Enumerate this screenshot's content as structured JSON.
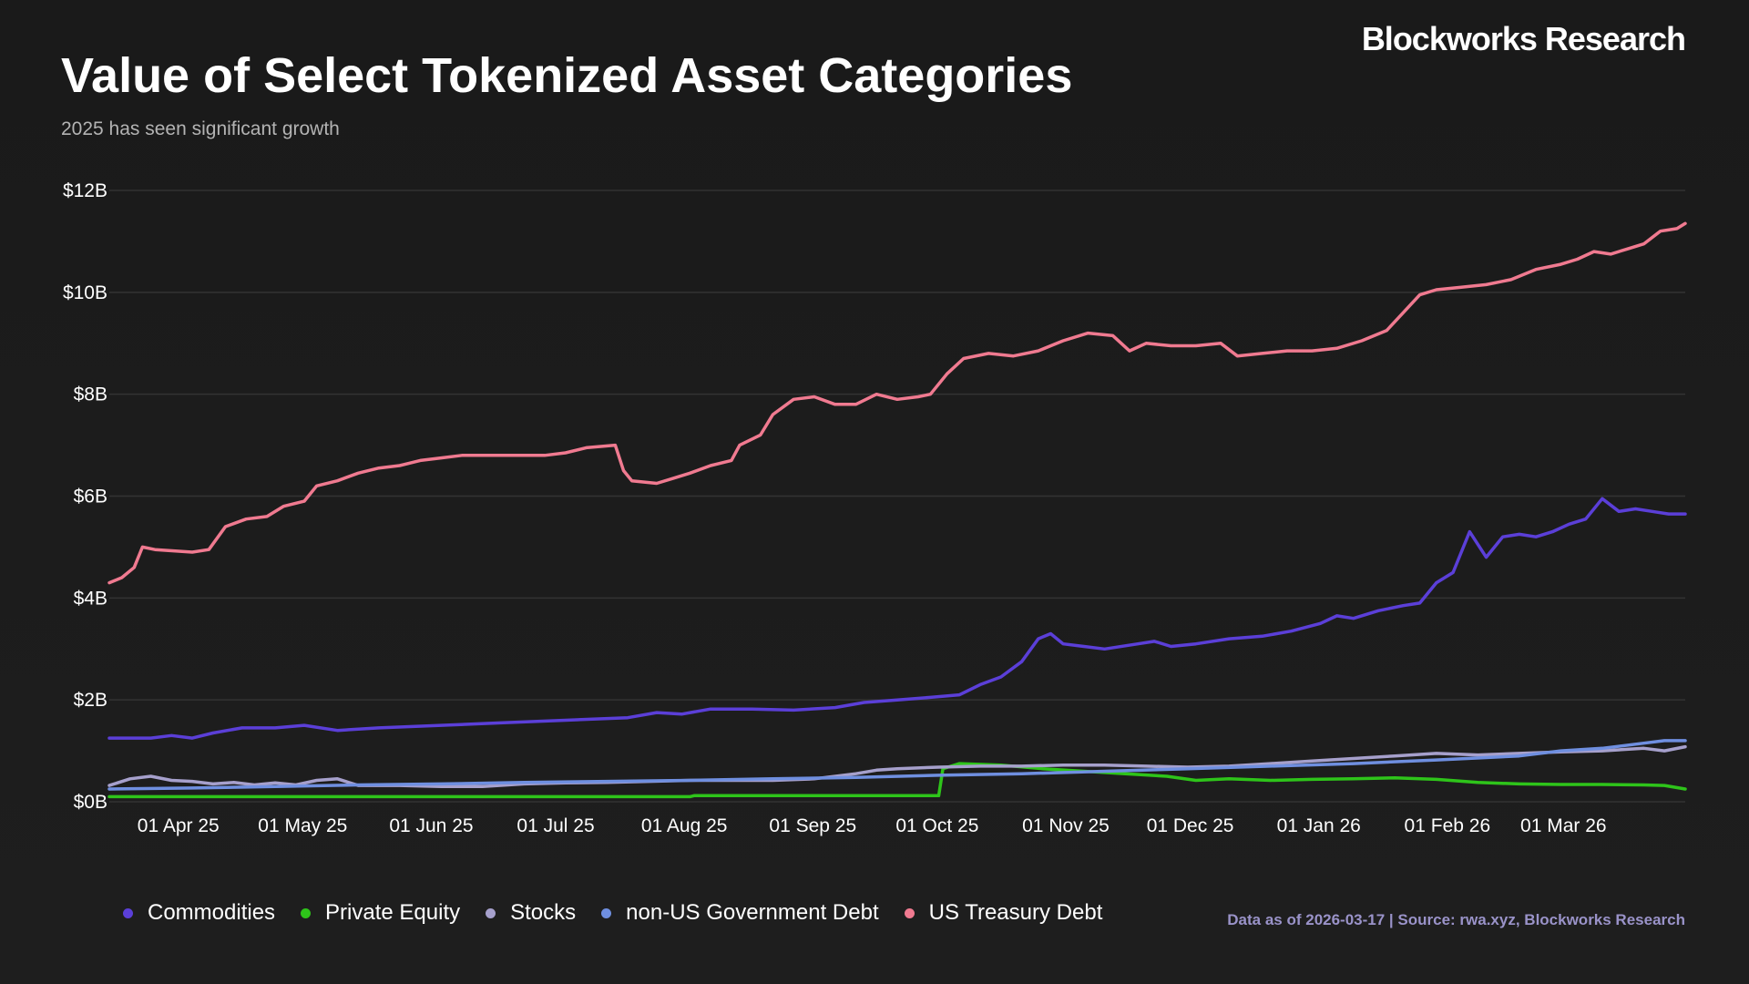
{
  "header": {
    "title": "Value of Select Tokenized Asset Categories",
    "subtitle": "2025 has seen significant growth",
    "brand": "Blockworks Research"
  },
  "footer": {
    "source": "Data as of 2026-03-17 | Source: rwa.xyz, Blockworks Research"
  },
  "chart_data": {
    "type": "line",
    "title": "Value of Select Tokenized Asset Categories",
    "subtitle": "2025 has seen significant growth",
    "xlabel": "",
    "ylabel": "",
    "x_range_days": [
      0,
      360
    ],
    "ylim": [
      0,
      12
    ],
    "y_ticks": [
      {
        "value": 0,
        "label": "$0B"
      },
      {
        "value": 2,
        "label": "$2B"
      },
      {
        "value": 4,
        "label": "$4B"
      },
      {
        "value": 6,
        "label": "$6B"
      },
      {
        "value": 8,
        "label": "$8B"
      },
      {
        "value": 10,
        "label": "$10B"
      },
      {
        "value": 12,
        "label": "$12B"
      }
    ],
    "x_ticks": [
      {
        "day": 14,
        "label": "01 Apr 25"
      },
      {
        "day": 44,
        "label": "01 May 25"
      },
      {
        "day": 75,
        "label": "01 Jun 25"
      },
      {
        "day": 105,
        "label": "01 Jul 25"
      },
      {
        "day": 136,
        "label": "01 Aug 25"
      },
      {
        "day": 167,
        "label": "01 Sep 25"
      },
      {
        "day": 197,
        "label": "01 Oct 25"
      },
      {
        "day": 228,
        "label": "01 Nov 25"
      },
      {
        "day": 258,
        "label": "01 Dec 25"
      },
      {
        "day": 289,
        "label": "01 Jan 26"
      },
      {
        "day": 320,
        "label": "01 Feb 26"
      },
      {
        "day": 348,
        "label": "01 Mar 26"
      }
    ],
    "grid": true,
    "legend_position": "bottom-left",
    "series": [
      {
        "name": "Commodities",
        "color": "#5b3fd8",
        "points": [
          [
            0,
            1.25
          ],
          [
            10,
            1.25
          ],
          [
            15,
            1.3
          ],
          [
            20,
            1.25
          ],
          [
            25,
            1.35
          ],
          [
            32,
            1.45
          ],
          [
            40,
            1.45
          ],
          [
            47,
            1.5
          ],
          [
            55,
            1.4
          ],
          [
            65,
            1.45
          ],
          [
            80,
            1.5
          ],
          [
            95,
            1.55
          ],
          [
            110,
            1.6
          ],
          [
            125,
            1.65
          ],
          [
            132,
            1.75
          ],
          [
            138,
            1.72
          ],
          [
            145,
            1.82
          ],
          [
            155,
            1.82
          ],
          [
            165,
            1.8
          ],
          [
            175,
            1.85
          ],
          [
            182,
            1.95
          ],
          [
            190,
            2.0
          ],
          [
            198,
            2.05
          ],
          [
            205,
            2.1
          ],
          [
            210,
            2.3
          ],
          [
            215,
            2.45
          ],
          [
            220,
            2.75
          ],
          [
            224,
            3.2
          ],
          [
            227,
            3.3
          ],
          [
            230,
            3.1
          ],
          [
            235,
            3.05
          ],
          [
            240,
            3.0
          ],
          [
            248,
            3.1
          ],
          [
            252,
            3.15
          ],
          [
            256,
            3.05
          ],
          [
            262,
            3.1
          ],
          [
            270,
            3.2
          ],
          [
            278,
            3.25
          ],
          [
            285,
            3.35
          ],
          [
            292,
            3.5
          ],
          [
            296,
            3.65
          ],
          [
            300,
            3.6
          ],
          [
            306,
            3.75
          ],
          [
            312,
            3.85
          ],
          [
            316,
            3.9
          ],
          [
            320,
            4.3
          ],
          [
            324,
            4.5
          ],
          [
            328,
            5.3
          ],
          [
            332,
            4.8
          ],
          [
            336,
            5.2
          ],
          [
            340,
            5.25
          ],
          [
            344,
            5.2
          ],
          [
            348,
            5.3
          ],
          [
            352,
            5.45
          ],
          [
            356,
            5.55
          ],
          [
            360,
            5.95
          ],
          [
            364,
            5.7
          ],
          [
            368,
            5.75
          ],
          [
            372,
            5.7
          ],
          [
            376,
            5.65
          ],
          [
            380,
            5.65
          ]
        ]
      },
      {
        "name": "Private Equity",
        "color": "#2ec41a",
        "points": [
          [
            0,
            0.1
          ],
          [
            140,
            0.1
          ],
          [
            141,
            0.12
          ],
          [
            200,
            0.12
          ],
          [
            201,
            0.65
          ],
          [
            205,
            0.75
          ],
          [
            215,
            0.72
          ],
          [
            225,
            0.65
          ],
          [
            235,
            0.6
          ],
          [
            245,
            0.55
          ],
          [
            255,
            0.5
          ],
          [
            262,
            0.42
          ],
          [
            270,
            0.45
          ],
          [
            280,
            0.42
          ],
          [
            290,
            0.44
          ],
          [
            300,
            0.45
          ],
          [
            310,
            0.47
          ],
          [
            320,
            0.44
          ],
          [
            330,
            0.38
          ],
          [
            340,
            0.35
          ],
          [
            350,
            0.34
          ],
          [
            360,
            0.34
          ],
          [
            370,
            0.33
          ],
          [
            375,
            0.32
          ],
          [
            380,
            0.25
          ]
        ]
      },
      {
        "name": "Stocks",
        "color": "#a6a0cc",
        "points": [
          [
            0,
            0.32
          ],
          [
            5,
            0.45
          ],
          [
            10,
            0.5
          ],
          [
            15,
            0.42
          ],
          [
            20,
            0.4
          ],
          [
            25,
            0.35
          ],
          [
            30,
            0.38
          ],
          [
            35,
            0.33
          ],
          [
            40,
            0.37
          ],
          [
            45,
            0.33
          ],
          [
            50,
            0.42
          ],
          [
            55,
            0.45
          ],
          [
            60,
            0.32
          ],
          [
            70,
            0.32
          ],
          [
            80,
            0.3
          ],
          [
            90,
            0.3
          ],
          [
            100,
            0.35
          ],
          [
            110,
            0.37
          ],
          [
            120,
            0.38
          ],
          [
            130,
            0.4
          ],
          [
            140,
            0.42
          ],
          [
            150,
            0.42
          ],
          [
            160,
            0.42
          ],
          [
            170,
            0.45
          ],
          [
            180,
            0.55
          ],
          [
            185,
            0.62
          ],
          [
            190,
            0.65
          ],
          [
            200,
            0.68
          ],
          [
            210,
            0.7
          ],
          [
            220,
            0.7
          ],
          [
            230,
            0.72
          ],
          [
            240,
            0.72
          ],
          [
            250,
            0.7
          ],
          [
            260,
            0.68
          ],
          [
            270,
            0.7
          ],
          [
            280,
            0.75
          ],
          [
            290,
            0.8
          ],
          [
            300,
            0.85
          ],
          [
            310,
            0.9
          ],
          [
            320,
            0.95
          ],
          [
            330,
            0.92
          ],
          [
            340,
            0.95
          ],
          [
            350,
            0.98
          ],
          [
            360,
            1.0
          ],
          [
            370,
            1.05
          ],
          [
            375,
            1.0
          ],
          [
            380,
            1.08
          ]
        ]
      },
      {
        "name": "non-US Government Debt",
        "color": "#6f8fe0",
        "points": [
          [
            0,
            0.25
          ],
          [
            20,
            0.27
          ],
          [
            40,
            0.3
          ],
          [
            60,
            0.33
          ],
          [
            80,
            0.35
          ],
          [
            100,
            0.38
          ],
          [
            120,
            0.4
          ],
          [
            140,
            0.42
          ],
          [
            160,
            0.45
          ],
          [
            180,
            0.48
          ],
          [
            200,
            0.52
          ],
          [
            220,
            0.55
          ],
          [
            240,
            0.6
          ],
          [
            260,
            0.65
          ],
          [
            280,
            0.7
          ],
          [
            300,
            0.75
          ],
          [
            320,
            0.82
          ],
          [
            340,
            0.9
          ],
          [
            350,
            1.0
          ],
          [
            360,
            1.05
          ],
          [
            370,
            1.15
          ],
          [
            375,
            1.2
          ],
          [
            380,
            1.2
          ]
        ]
      },
      {
        "name": "US Treasury Debt",
        "color": "#f07a90",
        "points": [
          [
            0,
            4.3
          ],
          [
            3,
            4.4
          ],
          [
            6,
            4.6
          ],
          [
            8,
            5.0
          ],
          [
            11,
            4.95
          ],
          [
            20,
            4.9
          ],
          [
            24,
            4.95
          ],
          [
            28,
            5.4
          ],
          [
            33,
            5.55
          ],
          [
            38,
            5.6
          ],
          [
            42,
            5.8
          ],
          [
            47,
            5.9
          ],
          [
            50,
            6.2
          ],
          [
            55,
            6.3
          ],
          [
            60,
            6.45
          ],
          [
            65,
            6.55
          ],
          [
            70,
            6.6
          ],
          [
            75,
            6.7
          ],
          [
            80,
            6.75
          ],
          [
            85,
            6.8
          ],
          [
            95,
            6.8
          ],
          [
            105,
            6.8
          ],
          [
            110,
            6.85
          ],
          [
            115,
            6.95
          ],
          [
            122,
            7.0
          ],
          [
            124,
            6.5
          ],
          [
            126,
            6.3
          ],
          [
            132,
            6.25
          ],
          [
            136,
            6.35
          ],
          [
            140,
            6.45
          ],
          [
            145,
            6.6
          ],
          [
            150,
            6.7
          ],
          [
            152,
            7.0
          ],
          [
            157,
            7.2
          ],
          [
            160,
            7.6
          ],
          [
            165,
            7.9
          ],
          [
            170,
            7.95
          ],
          [
            175,
            7.8
          ],
          [
            180,
            7.8
          ],
          [
            185,
            8.0
          ],
          [
            190,
            7.9
          ],
          [
            195,
            7.95
          ],
          [
            198,
            8.0
          ],
          [
            202,
            8.4
          ],
          [
            206,
            8.7
          ],
          [
            212,
            8.8
          ],
          [
            218,
            8.75
          ],
          [
            224,
            8.85
          ],
          [
            230,
            9.05
          ],
          [
            236,
            9.2
          ],
          [
            242,
            9.15
          ],
          [
            246,
            8.85
          ],
          [
            250,
            9.0
          ],
          [
            256,
            8.95
          ],
          [
            262,
            8.95
          ],
          [
            268,
            9.0
          ],
          [
            272,
            8.75
          ],
          [
            278,
            8.8
          ],
          [
            284,
            8.85
          ],
          [
            290,
            8.85
          ],
          [
            296,
            8.9
          ],
          [
            302,
            9.05
          ],
          [
            308,
            9.25
          ],
          [
            312,
            9.6
          ],
          [
            316,
            9.95
          ],
          [
            320,
            10.05
          ],
          [
            326,
            10.1
          ],
          [
            332,
            10.15
          ],
          [
            338,
            10.25
          ],
          [
            344,
            10.45
          ],
          [
            350,
            10.55
          ],
          [
            354,
            10.65
          ],
          [
            358,
            10.8
          ],
          [
            362,
            10.75
          ],
          [
            366,
            10.85
          ],
          [
            370,
            10.95
          ],
          [
            374,
            11.2
          ],
          [
            378,
            11.25
          ],
          [
            380,
            11.35
          ]
        ]
      }
    ]
  }
}
